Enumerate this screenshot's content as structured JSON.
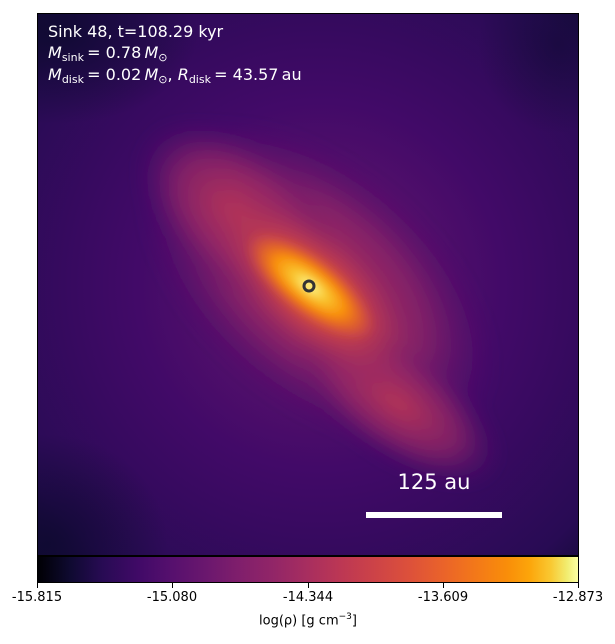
{
  "annotation": {
    "line1": "Sink 48, t=108.29 kyr",
    "sink_mass_symbol": "M",
    "sink_mass_subscript": "sink",
    "sink_mass_value": "= 0.78",
    "disk_mass_symbol": "M",
    "disk_mass_subscript": "disk",
    "disk_mass_value": "= 0.02",
    "solar_mass_symbol": "M",
    "solar_subscript": "⊙",
    "separator": ",",
    "disk_radius_symbol": "R",
    "disk_radius_subscript": "disk",
    "disk_radius_value": "= 43.57",
    "disk_radius_unit": "au"
  },
  "scalebar": {
    "label": "125 au"
  },
  "colorbar": {
    "colormap": "inferno",
    "min": -15.815,
    "max": -12.873,
    "tick_labels": [
      "-15.815",
      "-15.080",
      "-14.344",
      "-13.609",
      "-12.873"
    ],
    "label_main": "log(ρ) [g cm",
    "label_exp": "−3",
    "label_end": "]"
  },
  "sink": {
    "marker": "ring"
  }
}
